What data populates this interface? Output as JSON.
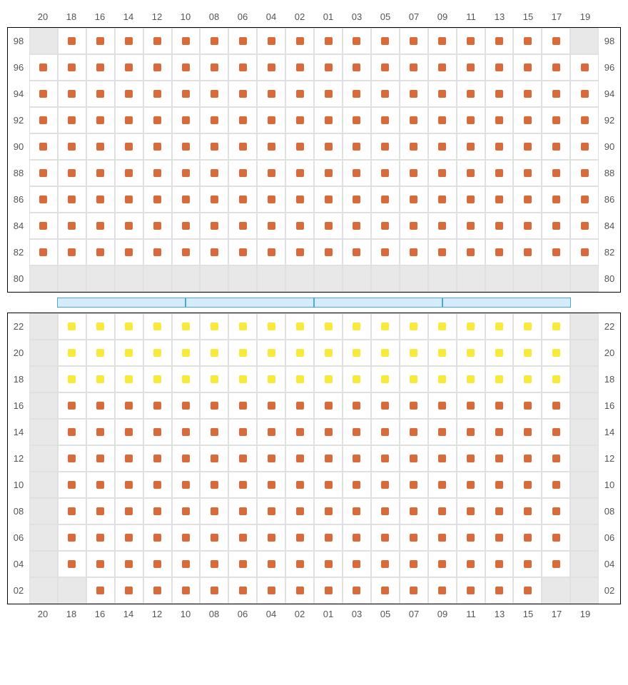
{
  "colors": {
    "seat_orange": "#d96b3a",
    "seat_yellow": "#f7ea3b",
    "blocked_bg": "#e8e8e8",
    "cell_border": "#e0e0e0",
    "section_border": "#000000",
    "divider_fill": "#d4ecfb",
    "divider_border": "#4aa8e0",
    "label_color": "#555555"
  },
  "layout": {
    "cols": 20,
    "col_labels": [
      "20",
      "18",
      "16",
      "14",
      "12",
      "10",
      "08",
      "06",
      "04",
      "02",
      "01",
      "03",
      "05",
      "07",
      "09",
      "11",
      "13",
      "15",
      "17",
      "19"
    ],
    "sections": [
      {
        "name": "upper",
        "rows": [
          {
            "label": "98",
            "blocked": [
              0,
              19
            ],
            "seats": {
              "from": 1,
              "to": 18,
              "color": "seat_orange"
            }
          },
          {
            "label": "96",
            "blocked": [],
            "seats": {
              "from": 0,
              "to": 19,
              "color": "seat_orange"
            }
          },
          {
            "label": "94",
            "blocked": [],
            "seats": {
              "from": 0,
              "to": 19,
              "color": "seat_orange"
            }
          },
          {
            "label": "92",
            "blocked": [],
            "seats": {
              "from": 0,
              "to": 19,
              "color": "seat_orange"
            }
          },
          {
            "label": "90",
            "blocked": [],
            "seats": {
              "from": 0,
              "to": 19,
              "color": "seat_orange"
            }
          },
          {
            "label": "88",
            "blocked": [],
            "seats": {
              "from": 0,
              "to": 19,
              "color": "seat_orange"
            }
          },
          {
            "label": "86",
            "blocked": [],
            "seats": {
              "from": 0,
              "to": 19,
              "color": "seat_orange"
            }
          },
          {
            "label": "84",
            "blocked": [],
            "seats": {
              "from": 0,
              "to": 19,
              "color": "seat_orange"
            }
          },
          {
            "label": "82",
            "blocked": [],
            "seats": {
              "from": 0,
              "to": 19,
              "color": "seat_orange"
            }
          },
          {
            "label": "80",
            "blocked": [
              0,
              1,
              2,
              3,
              4,
              5,
              6,
              7,
              8,
              9,
              10,
              11,
              12,
              13,
              14,
              15,
              16,
              17,
              18,
              19
            ],
            "seats": null
          }
        ]
      },
      {
        "name": "lower",
        "rows": [
          {
            "label": "22",
            "blocked": [
              0,
              19
            ],
            "seats": {
              "from": 1,
              "to": 18,
              "color": "seat_yellow"
            }
          },
          {
            "label": "20",
            "blocked": [
              0,
              19
            ],
            "seats": {
              "from": 1,
              "to": 18,
              "color": "seat_yellow"
            }
          },
          {
            "label": "18",
            "blocked": [
              0,
              19
            ],
            "seats": {
              "from": 1,
              "to": 18,
              "color": "seat_yellow"
            }
          },
          {
            "label": "16",
            "blocked": [
              0,
              19
            ],
            "seats": {
              "from": 1,
              "to": 18,
              "color": "seat_orange"
            }
          },
          {
            "label": "14",
            "blocked": [
              0,
              19
            ],
            "seats": {
              "from": 1,
              "to": 18,
              "color": "seat_orange"
            }
          },
          {
            "label": "12",
            "blocked": [
              0,
              19
            ],
            "seats": {
              "from": 1,
              "to": 18,
              "color": "seat_orange"
            }
          },
          {
            "label": "10",
            "blocked": [
              0,
              19
            ],
            "seats": {
              "from": 1,
              "to": 18,
              "color": "seat_orange"
            }
          },
          {
            "label": "08",
            "blocked": [
              0,
              19
            ],
            "seats": {
              "from": 1,
              "to": 18,
              "color": "seat_orange"
            }
          },
          {
            "label": "06",
            "blocked": [
              0,
              19
            ],
            "seats": {
              "from": 1,
              "to": 18,
              "color": "seat_orange"
            }
          },
          {
            "label": "04",
            "blocked": [
              0,
              19
            ],
            "seats": {
              "from": 1,
              "to": 18,
              "color": "seat_orange"
            }
          },
          {
            "label": "02",
            "blocked": [
              0,
              1,
              18,
              19
            ],
            "seats": {
              "from": 2,
              "to": 17,
              "color": "seat_orange"
            }
          }
        ]
      }
    ],
    "divider_segments": 4
  }
}
